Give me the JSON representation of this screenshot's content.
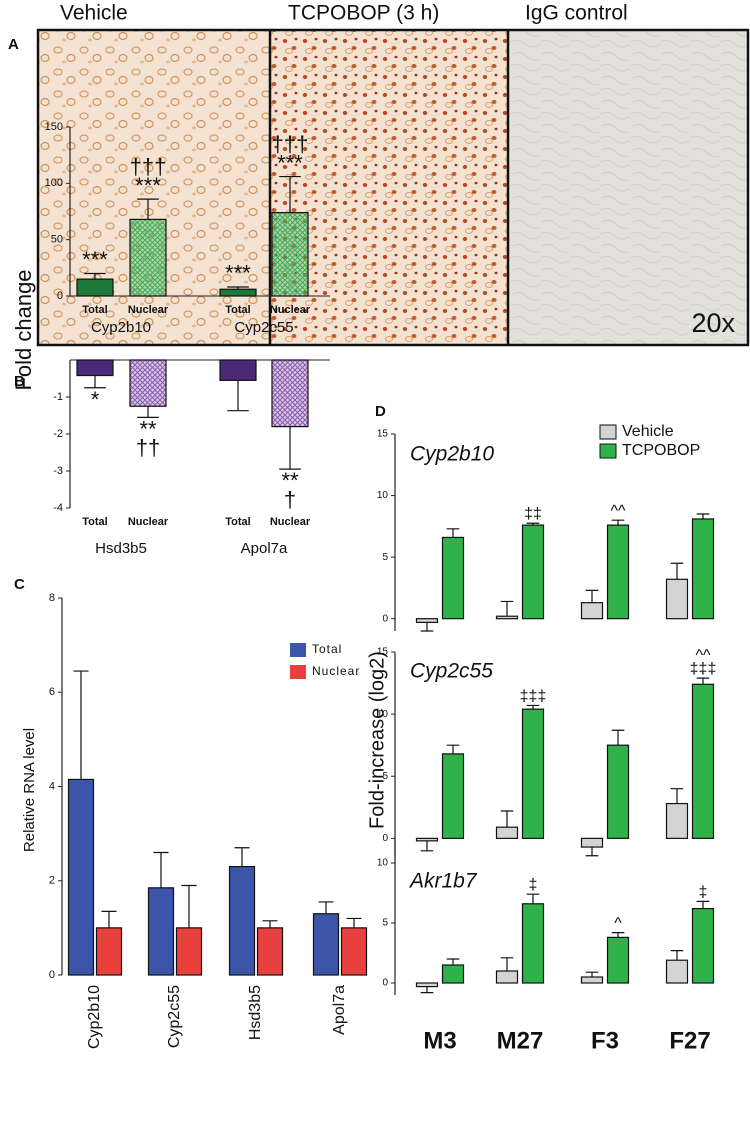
{
  "panel_a": {
    "label": "A",
    "images": [
      {
        "title": "Vehicle"
      },
      {
        "title": "TCPOBOP (3 h)"
      },
      {
        "title": "IgG control",
        "magnification": "20x"
      }
    ]
  },
  "chart_data": [
    {
      "type": "bar",
      "panel": "B",
      "ylabel": "Fold change",
      "categories": [
        "Total",
        "Nuclear",
        "Total",
        "Nuclear"
      ],
      "groups": [
        "Cyp2b10",
        "Cyp2c55"
      ],
      "values": [
        15,
        68,
        6,
        74
      ],
      "errors": [
        5,
        18,
        2,
        32
      ],
      "colors": [
        "#1b7a3a",
        "#3fae5a",
        "#1b7a3a",
        "#3fae5a"
      ],
      "hatched": [
        false,
        true,
        false,
        true
      ],
      "annotations": [
        [
          "***"
        ],
        [
          "†††",
          "***"
        ],
        [
          "***"
        ],
        [
          "†††",
          "***"
        ]
      ],
      "ylim": [
        0,
        150
      ],
      "yticks": [
        0,
        50,
        100,
        150
      ]
    },
    {
      "type": "bar",
      "categories": [
        "Total",
        "Nuclear",
        "Total",
        "Nuclear"
      ],
      "groups": [
        "Hsd3b5",
        "Apol7a"
      ],
      "values": [
        -0.42,
        -1.25,
        -0.55,
        -1.8
      ],
      "errors": [
        0.33,
        0.3,
        0.82,
        1.15
      ],
      "colors": [
        "#4a2a78",
        "#8a5cb0",
        "#4a2a78",
        "#8a5cb0"
      ],
      "hatched": [
        false,
        true,
        false,
        true
      ],
      "annotations": [
        [
          "*"
        ],
        [
          "**",
          "††"
        ],
        null,
        [
          "**",
          "†"
        ]
      ],
      "ylim": [
        -4,
        0
      ],
      "yticks": [
        -4,
        -3,
        -2,
        -1
      ]
    },
    {
      "type": "grouped_bar",
      "panel": "C",
      "ylabel": "Relative RNA level",
      "categories": [
        "Cyp2b10",
        "Cyp2c55",
        "Hsd3b5",
        "Apol7a"
      ],
      "series": [
        {
          "name": "Total",
          "color": "#3b55a8",
          "values": [
            4.15,
            1.85,
            2.3,
            1.3
          ],
          "errors": [
            2.3,
            0.75,
            0.4,
            0.25
          ]
        },
        {
          "name": "Nuclear",
          "color": "#e8403f",
          "values": [
            1,
            1,
            1,
            1
          ],
          "errors": [
            0.35,
            0.9,
            0.15,
            0.2
          ]
        }
      ],
      "ylim": [
        0,
        8
      ],
      "yticks": [
        0,
        2,
        4,
        6,
        8
      ]
    },
    {
      "type": "grouped_bar",
      "panel": "D",
      "title": "Cyp2b10",
      "series": [
        {
          "name": "Vehicle",
          "color": "#d4d4d4",
          "values": [
            -0.3,
            0.2,
            1.3,
            3.2
          ],
          "errors": [
            0.7,
            1.2,
            1.0,
            1.3
          ]
        },
        {
          "name": "TCPOBOP",
          "color": "#2fb24a",
          "values": [
            6.6,
            7.6,
            7.6,
            8.1
          ],
          "errors": [
            0.7,
            0.15,
            0.4,
            0.4
          ],
          "annotations": [
            null,
            [
              "‡‡"
            ],
            [
              "^^"
            ],
            null
          ]
        }
      ],
      "ylim": [
        -1,
        15
      ],
      "yticks": [
        0,
        5,
        10,
        15
      ]
    },
    {
      "type": "grouped_bar",
      "title": "Cyp2c55",
      "ylabel": "Fold-increase  (log2)",
      "series": [
        {
          "name": "Vehicle",
          "color": "#d4d4d4",
          "values": [
            -0.2,
            0.9,
            -0.7,
            2.8
          ],
          "errors": [
            0.8,
            1.3,
            0.7,
            1.2
          ]
        },
        {
          "name": "TCPOBOP",
          "color": "#2fb24a",
          "values": [
            6.8,
            10.4,
            7.5,
            12.4
          ],
          "errors": [
            0.7,
            0.3,
            1.2,
            0.5
          ],
          "annotations": [
            null,
            [
              "‡‡‡"
            ],
            null,
            [
              "^^",
              "‡‡‡"
            ]
          ]
        }
      ],
      "ylim": [
        -1.5,
        15
      ],
      "yticks": [
        0,
        5,
        10,
        15
      ]
    },
    {
      "type": "grouped_bar",
      "title": "Akr1b7",
      "categories": [
        "M3",
        "M27",
        "F3",
        "F27"
      ],
      "series": [
        {
          "name": "Vehicle",
          "color": "#d4d4d4",
          "values": [
            -0.3,
            1.0,
            0.5,
            1.9
          ],
          "errors": [
            0.5,
            1.1,
            0.4,
            0.8
          ]
        },
        {
          "name": "TCPOBOP",
          "color": "#2fb24a",
          "values": [
            1.5,
            6.6,
            3.8,
            6.2
          ],
          "errors": [
            0.5,
            0.8,
            0.4,
            0.6
          ],
          "annotations": [
            null,
            [
              "‡"
            ],
            [
              "^"
            ],
            [
              "‡"
            ]
          ]
        }
      ],
      "ylim": [
        -1,
        12
      ],
      "yticks": [
        0,
        5,
        10
      ]
    }
  ]
}
